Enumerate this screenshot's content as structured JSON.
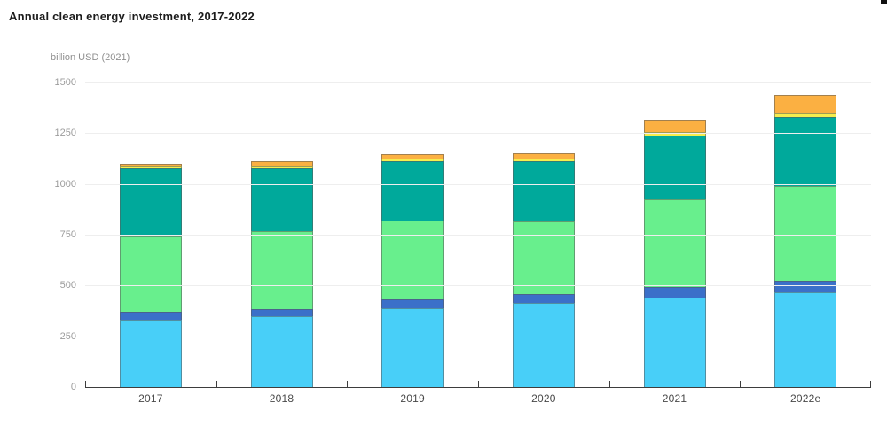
{
  "chart_data": {
    "type": "bar",
    "stacked": true,
    "title": "Annual clean energy investment, 2017-2022",
    "ylabel": "billion USD (2021)",
    "xlabel": "",
    "categories": [
      "2017",
      "2018",
      "2019",
      "2020",
      "2021",
      "2022e"
    ],
    "series": [
      {
        "name": "light-blue",
        "color": "#48CFF8",
        "values": [
          331,
          351,
          390,
          414,
          441,
          468
        ]
      },
      {
        "name": "dark-blue",
        "color": "#3B70C9",
        "values": [
          39,
          36,
          44,
          44,
          53,
          58
        ]
      },
      {
        "name": "light-green",
        "color": "#68EF8D",
        "values": [
          370,
          385,
          389,
          357,
          433,
          468
        ]
      },
      {
        "name": "teal",
        "color": "#00A99B",
        "values": [
          336,
          310,
          292,
          296,
          316,
          339
        ]
      },
      {
        "name": "yellow",
        "color": "#F4EE4F",
        "values": [
          12,
          15,
          15,
          15,
          17,
          16
        ]
      },
      {
        "name": "orange",
        "color": "#FBB042",
        "values": [
          6,
          23,
          23,
          28,
          56,
          93
        ]
      }
    ],
    "totals": [
      1094,
      1120,
      1153,
      1154,
      1316,
      1442
    ],
    "y_axis": {
      "ticks": [
        0,
        250,
        500,
        750,
        1000,
        1250,
        1500
      ],
      "max": 1500
    },
    "grid": true,
    "legend": "none"
  }
}
